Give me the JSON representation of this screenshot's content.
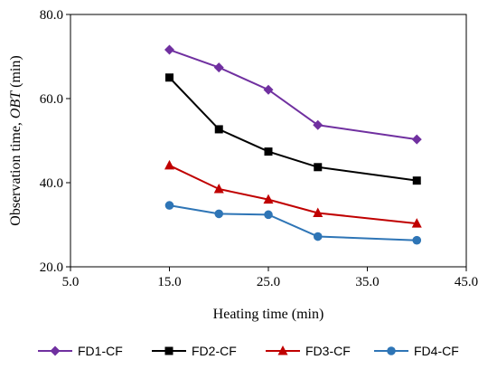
{
  "chart_data": {
    "type": "line",
    "xlabel": "Heating time (min)",
    "ylabel_prefix": "Observation time, ",
    "ylabel_italic": "OBT",
    "ylabel_suffix": " (min)",
    "xlim": [
      5.0,
      45.0
    ],
    "ylim": [
      20.0,
      80.0
    ],
    "x_ticks": [
      "5.0",
      "15.0",
      "25.0",
      "35.0",
      "45.0"
    ],
    "x_tick_values": [
      5,
      15,
      25,
      35,
      45
    ],
    "y_ticks": [
      "20.0",
      "40.0",
      "60.0",
      "80.0"
    ],
    "y_tick_values": [
      20,
      40,
      60,
      80
    ],
    "grid": false,
    "legend_position": "bottom",
    "x": [
      15,
      20,
      25,
      30,
      40
    ],
    "series": [
      {
        "name": "FD1-CF",
        "color": "#7030A0",
        "marker": "diamond",
        "values": [
          71.6,
          67.4,
          62.1,
          53.7,
          50.3
        ]
      },
      {
        "name": "FD2-CF",
        "color": "#000000",
        "marker": "square",
        "values": [
          65.0,
          52.7,
          47.4,
          43.7,
          40.5
        ]
      },
      {
        "name": "FD3-CF",
        "color": "#C00000",
        "marker": "triangle",
        "values": [
          44.1,
          38.5,
          36.0,
          32.8,
          30.3
        ]
      },
      {
        "name": "FD4-CF",
        "color": "#2E75B6",
        "marker": "circle",
        "values": [
          34.6,
          32.6,
          32.4,
          27.2,
          26.3
        ]
      }
    ]
  }
}
